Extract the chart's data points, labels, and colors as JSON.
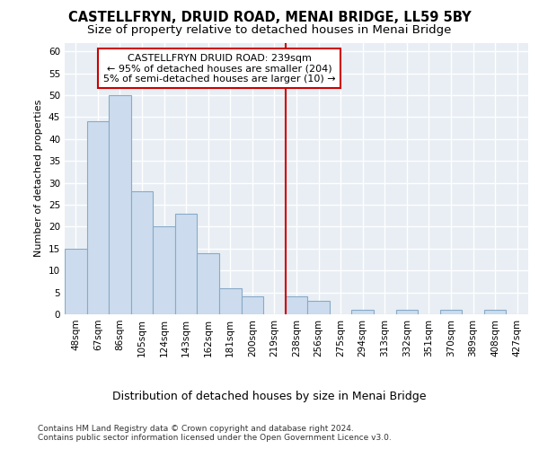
{
  "title": "CASTELLFRYN, DRUID ROAD, MENAI BRIDGE, LL59 5BY",
  "subtitle": "Size of property relative to detached houses in Menai Bridge",
  "xlabel": "Distribution of detached houses by size in Menai Bridge",
  "ylabel": "Number of detached properties",
  "categories": [
    "48sqm",
    "67sqm",
    "86sqm",
    "105sqm",
    "124sqm",
    "143sqm",
    "162sqm",
    "181sqm",
    "200sqm",
    "219sqm",
    "238sqm",
    "256sqm",
    "275sqm",
    "294sqm",
    "313sqm",
    "332sqm",
    "351sqm",
    "370sqm",
    "389sqm",
    "408sqm",
    "427sqm"
  ],
  "values": [
    15,
    44,
    50,
    28,
    20,
    23,
    14,
    6,
    4,
    0,
    4,
    3,
    0,
    1,
    0,
    1,
    0,
    1,
    0,
    1,
    0
  ],
  "bar_color": "#ccdcee",
  "bar_edge_color": "#88aac8",
  "vline_index": 10,
  "vline_color": "#cc0000",
  "annotation_text": "CASTELLFRYN DRUID ROAD: 239sqm\n← 95% of detached houses are smaller (204)\n5% of semi-detached houses are larger (10) →",
  "annotation_box_color": "#cc0000",
  "ylim": [
    0,
    62
  ],
  "yticks": [
    0,
    5,
    10,
    15,
    20,
    25,
    30,
    35,
    40,
    45,
    50,
    55,
    60
  ],
  "footer": "Contains HM Land Registry data © Crown copyright and database right 2024.\nContains public sector information licensed under the Open Government Licence v3.0.",
  "bg_color": "#ffffff",
  "plot_bg_color": "#e8eef4",
  "grid_color": "#ffffff",
  "title_fontsize": 10.5,
  "subtitle_fontsize": 9.5,
  "xlabel_fontsize": 9,
  "ylabel_fontsize": 8,
  "tick_fontsize": 7.5,
  "annotation_fontsize": 8,
  "footer_fontsize": 6.5
}
